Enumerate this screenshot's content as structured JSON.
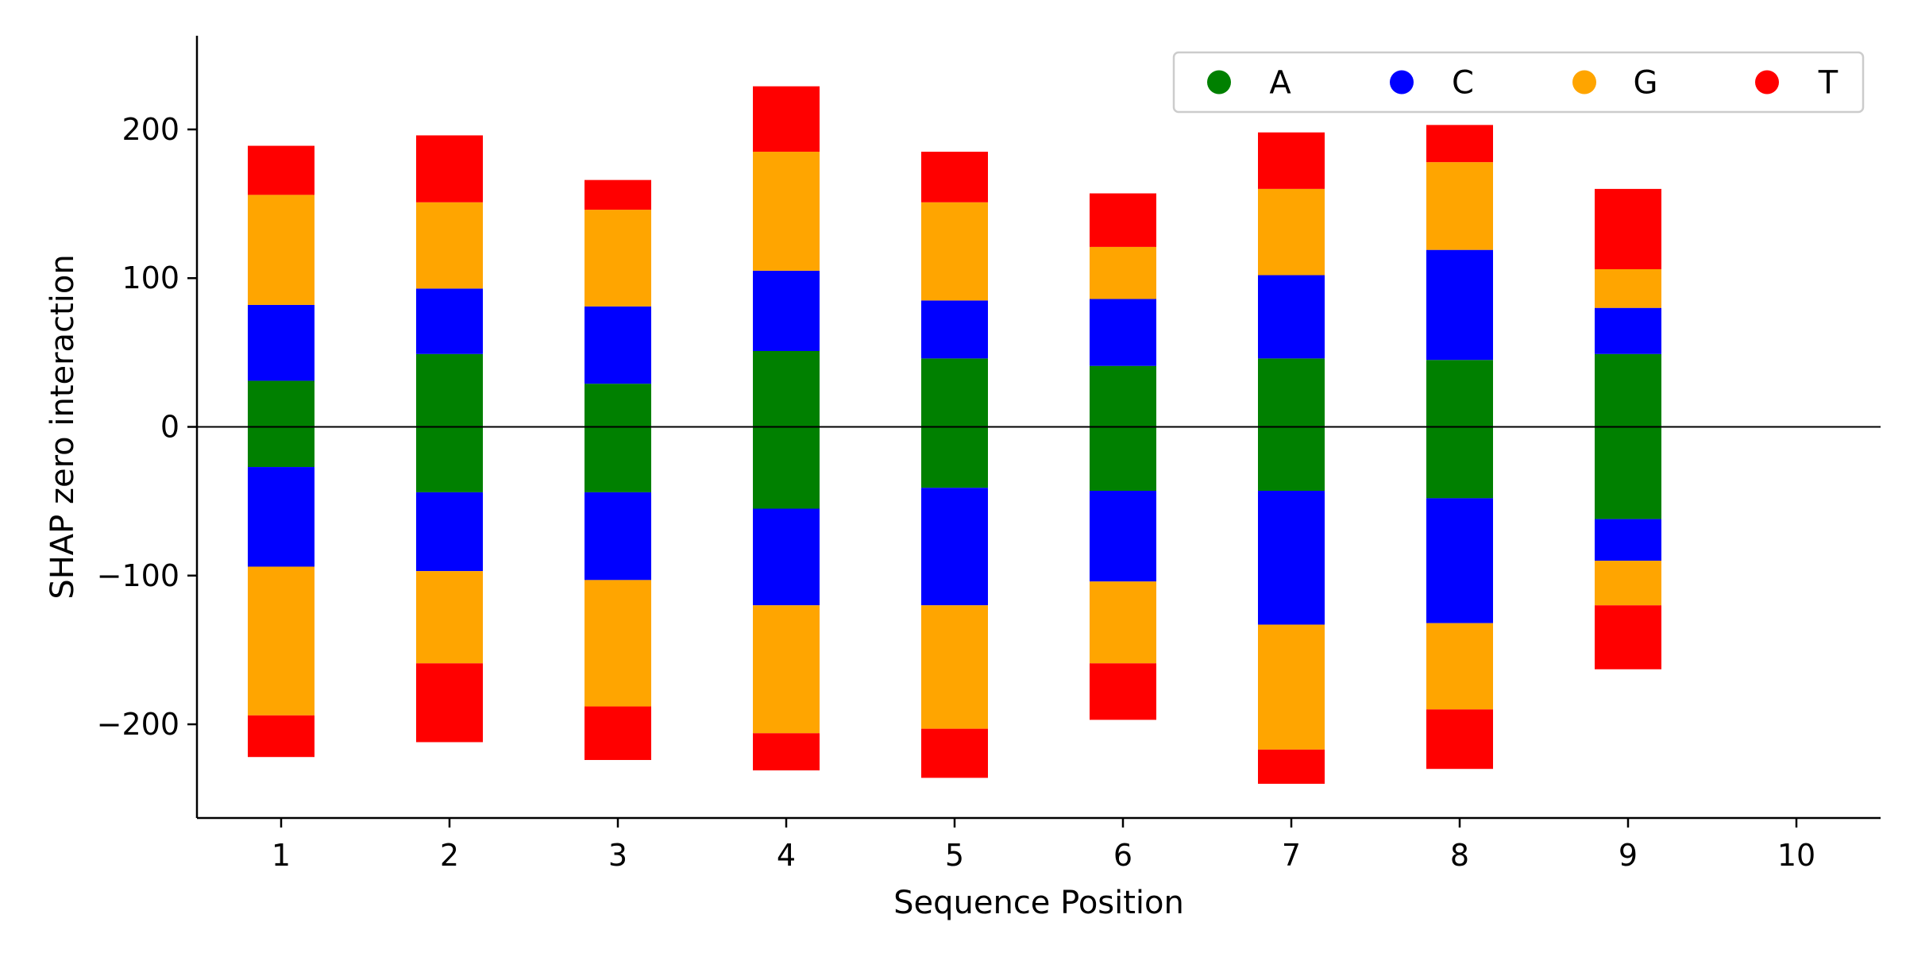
{
  "chart_data": {
    "type": "bar",
    "stacked": "diverging",
    "title": "",
    "xlabel": "Sequence Position",
    "ylabel": "SHAP zero interaction",
    "categories": [
      "1",
      "2",
      "3",
      "4",
      "5",
      "6",
      "7",
      "8",
      "9",
      "10"
    ],
    "xlim": [
      0.5,
      10.5
    ],
    "ylim": [
      -263,
      263
    ],
    "yticks": [
      -200,
      -100,
      0,
      100,
      200
    ],
    "grid": false,
    "zero_line": true,
    "legend": {
      "position": "top-right",
      "orientation": "horizontal",
      "marker": "circle"
    },
    "stack_order_positive": [
      "A",
      "C",
      "G",
      "T"
    ],
    "stack_order_negative": [
      "A",
      "C",
      "G",
      "T"
    ],
    "series": [
      {
        "name": "A",
        "color": "#008000",
        "positive": [
          31,
          49,
          29,
          51,
          46,
          41,
          46,
          45,
          49,
          0
        ],
        "negative": [
          -27,
          -44,
          -44,
          -55,
          -41,
          -43,
          -43,
          -48,
          -62,
          0
        ]
      },
      {
        "name": "C",
        "color": "#0000ff",
        "positive": [
          51,
          44,
          52,
          54,
          39,
          45,
          56,
          74,
          31,
          0
        ],
        "negative": [
          -67,
          -53,
          -59,
          -65,
          -79,
          -61,
          -90,
          -84,
          -28,
          0
        ]
      },
      {
        "name": "G",
        "color": "#ffa500",
        "positive": [
          74,
          58,
          65,
          80,
          66,
          35,
          58,
          59,
          26,
          0
        ],
        "negative": [
          -100,
          -62,
          -85,
          -86,
          -83,
          -55,
          -84,
          -58,
          -30,
          0
        ]
      },
      {
        "name": "T",
        "color": "#ff0000",
        "positive": [
          33,
          45,
          20,
          44,
          34,
          36,
          38,
          25,
          54,
          0
        ],
        "negative": [
          -28,
          -53,
          -36,
          -25,
          -33,
          -38,
          -23,
          -40,
          -43,
          0
        ]
      }
    ]
  }
}
